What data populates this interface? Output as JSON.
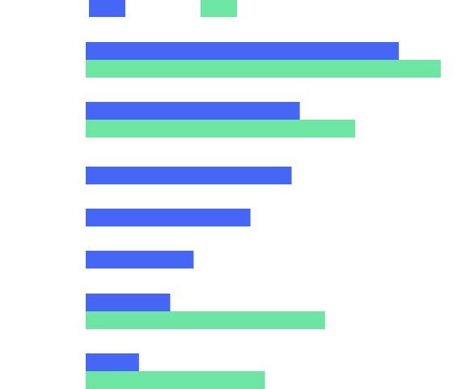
{
  "chart_data": {
    "type": "bar",
    "orientation": "horizontal",
    "legend_placement": "top-left",
    "grid": false,
    "xlim": [
      0,
      100
    ],
    "categories_count_note": "",
    "rows": [
      {
        "values": [
          88.2,
          100.0
        ]
      },
      {
        "values": [
          60.3,
          75.9
        ]
      },
      {
        "values": [
          58.0,
          null
        ]
      },
      {
        "values": [
          46.4,
          null
        ]
      },
      {
        "values": [
          30.4,
          null
        ]
      },
      {
        "values": [
          23.8,
          67.4
        ]
      },
      {
        "values": [
          15.0,
          50.5
        ]
      }
    ],
    "series": [
      {
        "color": "#4666f5"
      },
      {
        "color": "#6de6a3"
      }
    ]
  }
}
